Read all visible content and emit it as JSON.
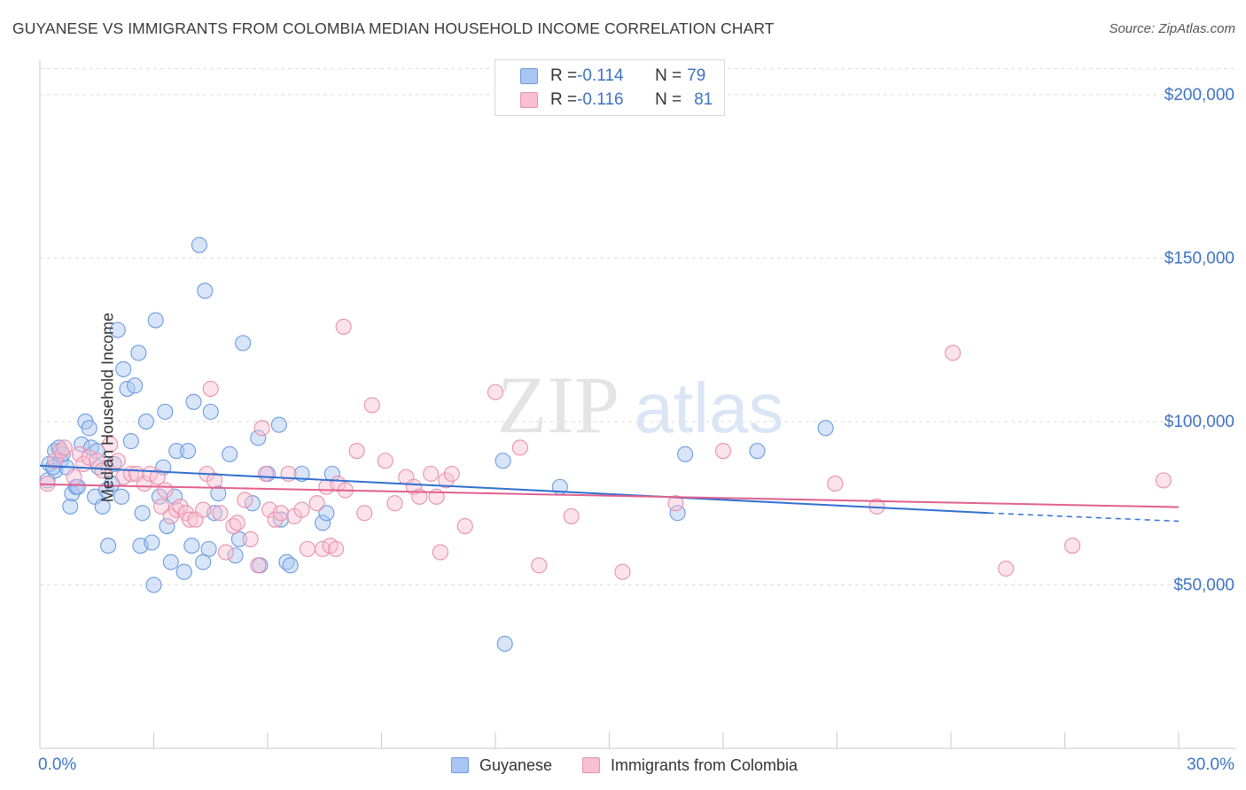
{
  "title": "GUYANESE VS IMMIGRANTS FROM COLOMBIA MEDIAN HOUSEHOLD INCOME CORRELATION CHART",
  "source": "Source: ZipAtlas.com",
  "watermark": {
    "zip": "ZIP",
    "atlas": "atlas"
  },
  "legend": {
    "rows": [
      {
        "r_label": "R = ",
        "r_value": "-0.114",
        "n_label": "N = ",
        "n_value": "79",
        "color": "#a9c6f2",
        "border": "#6a9be0"
      },
      {
        "r_label": "R = ",
        "r_value": "-0.116",
        "n_label": "N = ",
        "n_value": "81",
        "color": "#f8c0d2",
        "border": "#e890ac"
      }
    ]
  },
  "bottom_legend": [
    {
      "label": "Guyanese",
      "color": "#a9c6f2",
      "border": "#6a9be0"
    },
    {
      "label": "Immigrants from Colombia",
      "color": "#f8c0d2",
      "border": "#e890ac"
    }
  ],
  "chart_data": {
    "type": "scatter",
    "title": "GUYANESE VS IMMIGRANTS FROM COLOMBIA MEDIAN HOUSEHOLD INCOME CORRELATION CHART",
    "xlabel": "",
    "ylabel": "Median Household Income",
    "xlim": [
      0,
      30
    ],
    "ylim": [
      0,
      210000
    ],
    "x_tick_labels": [
      "0.0%",
      "30.0%"
    ],
    "y_ticks": [
      50000,
      100000,
      150000,
      200000
    ],
    "y_tick_labels": [
      "$50,000",
      "$100,000",
      "$150,000",
      "$200,000"
    ],
    "grid": "horizontal dashed",
    "series": [
      {
        "name": "Guyanese",
        "color": "#6a9be0",
        "fill": "rgba(169,198,242,0.45)",
        "trend_color": "#2f6fd0",
        "trend": {
          "x0": 0.0,
          "y0": 86500,
          "x1": 25.0,
          "y1": 72000,
          "dash_to": 30.0,
          "dash_y": 69500
        },
        "points": [
          [
            0.2,
            82000
          ],
          [
            0.25,
            87000
          ],
          [
            0.4,
            85000
          ],
          [
            0.4,
            91000
          ],
          [
            0.5,
            92000
          ],
          [
            0.55,
            88000
          ],
          [
            0.7,
            86000
          ],
          [
            0.8,
            74000
          ],
          [
            0.85,
            78000
          ],
          [
            0.95,
            80000
          ],
          [
            1.1,
            93000
          ],
          [
            1.2,
            100000
          ],
          [
            1.3,
            98000
          ],
          [
            1.35,
            92000
          ],
          [
            1.45,
            77000
          ],
          [
            1.5,
            91000
          ],
          [
            1.65,
            74000
          ],
          [
            1.75,
            79000
          ],
          [
            1.8,
            62000
          ],
          [
            1.9,
            81000
          ],
          [
            1.95,
            87000
          ],
          [
            2.05,
            128000
          ],
          [
            2.15,
            77000
          ],
          [
            2.2,
            116000
          ],
          [
            2.3,
            110000
          ],
          [
            2.4,
            94000
          ],
          [
            2.5,
            111000
          ],
          [
            2.6,
            121000
          ],
          [
            2.65,
            62000
          ],
          [
            2.7,
            72000
          ],
          [
            2.8,
            100000
          ],
          [
            2.95,
            63000
          ],
          [
            3.0,
            50000
          ],
          [
            3.05,
            131000
          ],
          [
            3.15,
            77000
          ],
          [
            3.25,
            86000
          ],
          [
            3.3,
            103000
          ],
          [
            3.35,
            68000
          ],
          [
            3.45,
            57000
          ],
          [
            3.55,
            77000
          ],
          [
            3.6,
            91000
          ],
          [
            3.8,
            54000
          ],
          [
            3.9,
            91000
          ],
          [
            4.0,
            62000
          ],
          [
            4.05,
            106000
          ],
          [
            4.2,
            154000
          ],
          [
            4.3,
            57000
          ],
          [
            4.35,
            140000
          ],
          [
            4.45,
            61000
          ],
          [
            4.5,
            103000
          ],
          [
            4.6,
            72000
          ],
          [
            4.7,
            78000
          ],
          [
            5.0,
            90000
          ],
          [
            5.15,
            59000
          ],
          [
            5.25,
            64000
          ],
          [
            5.35,
            124000
          ],
          [
            5.6,
            75000
          ],
          [
            5.75,
            95000
          ],
          [
            5.8,
            56000
          ],
          [
            6.0,
            84000
          ],
          [
            6.3,
            99000
          ],
          [
            6.35,
            70000
          ],
          [
            6.5,
            57000
          ],
          [
            6.6,
            56000
          ],
          [
            6.9,
            84000
          ],
          [
            7.45,
            69000
          ],
          [
            7.55,
            72000
          ],
          [
            7.7,
            84000
          ],
          [
            12.2,
            88000
          ],
          [
            12.25,
            32000
          ],
          [
            13.7,
            80000
          ],
          [
            16.8,
            72000
          ],
          [
            17.0,
            90000
          ],
          [
            18.9,
            91000
          ],
          [
            20.7,
            98000
          ],
          [
            0.35,
            86000
          ],
          [
            1.0,
            80000
          ],
          [
            0.6,
            90000
          ],
          [
            1.55,
            86000
          ]
        ]
      },
      {
        "name": "Immigrants from Colombia",
        "color": "#e890ac",
        "fill": "rgba(248,192,210,0.45)",
        "trend_color": "#e0608e",
        "trend": {
          "x0": 0.0,
          "y0": 80800,
          "x1": 30.0,
          "y1": 73800
        },
        "points": [
          [
            0.2,
            81000
          ],
          [
            0.4,
            88000
          ],
          [
            0.55,
            91000
          ],
          [
            0.65,
            92000
          ],
          [
            0.9,
            83000
          ],
          [
            1.05,
            90000
          ],
          [
            1.15,
            87000
          ],
          [
            1.3,
            89000
          ],
          [
            1.5,
            88000
          ],
          [
            1.65,
            85000
          ],
          [
            1.85,
            93000
          ],
          [
            2.05,
            88000
          ],
          [
            2.2,
            83000
          ],
          [
            2.4,
            84000
          ],
          [
            2.55,
            84000
          ],
          [
            2.75,
            81000
          ],
          [
            2.9,
            84000
          ],
          [
            3.1,
            83000
          ],
          [
            3.2,
            74000
          ],
          [
            3.3,
            79000
          ],
          [
            3.45,
            71000
          ],
          [
            3.6,
            73000
          ],
          [
            3.7,
            74000
          ],
          [
            3.85,
            72000
          ],
          [
            3.95,
            70000
          ],
          [
            4.1,
            70000
          ],
          [
            4.3,
            73000
          ],
          [
            4.4,
            84000
          ],
          [
            4.5,
            110000
          ],
          [
            4.6,
            82000
          ],
          [
            4.75,
            72000
          ],
          [
            4.9,
            60000
          ],
          [
            5.1,
            68000
          ],
          [
            5.2,
            69000
          ],
          [
            5.4,
            76000
          ],
          [
            5.55,
            64000
          ],
          [
            5.75,
            56000
          ],
          [
            5.85,
            98000
          ],
          [
            5.95,
            84000
          ],
          [
            6.05,
            73000
          ],
          [
            6.2,
            70000
          ],
          [
            6.35,
            72000
          ],
          [
            6.55,
            84000
          ],
          [
            6.7,
            71000
          ],
          [
            6.9,
            73000
          ],
          [
            7.05,
            61000
          ],
          [
            7.3,
            75000
          ],
          [
            7.45,
            61000
          ],
          [
            7.55,
            80000
          ],
          [
            7.65,
            62000
          ],
          [
            7.8,
            61000
          ],
          [
            7.85,
            81000
          ],
          [
            8.0,
            129000
          ],
          [
            8.05,
            79000
          ],
          [
            8.35,
            91000
          ],
          [
            8.55,
            72000
          ],
          [
            8.75,
            105000
          ],
          [
            9.1,
            88000
          ],
          [
            9.35,
            75000
          ],
          [
            9.65,
            83000
          ],
          [
            9.85,
            80000
          ],
          [
            10.0,
            77000
          ],
          [
            10.3,
            84000
          ],
          [
            10.45,
            77000
          ],
          [
            10.55,
            60000
          ],
          [
            10.7,
            82000
          ],
          [
            10.85,
            84000
          ],
          [
            11.2,
            68000
          ],
          [
            12.0,
            109000
          ],
          [
            12.65,
            92000
          ],
          [
            13.15,
            56000
          ],
          [
            14.0,
            71000
          ],
          [
            15.35,
            54000
          ],
          [
            16.75,
            75000
          ],
          [
            18.0,
            91000
          ],
          [
            20.95,
            81000
          ],
          [
            22.05,
            74000
          ],
          [
            24.05,
            121000
          ],
          [
            25.45,
            55000
          ],
          [
            27.2,
            62000
          ],
          [
            29.6,
            82000
          ]
        ]
      }
    ]
  }
}
